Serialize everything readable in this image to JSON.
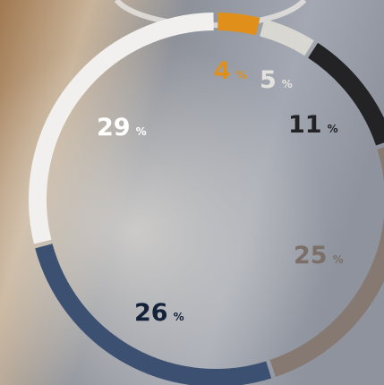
{
  "chart_data": {
    "type": "donut",
    "unit": "%",
    "categories": [
      null,
      null,
      null,
      null,
      null,
      null
    ],
    "values": [
      4,
      5,
      11,
      25,
      26,
      29
    ],
    "colors": [
      "#e0901a",
      "#d9d7d1",
      "#232325",
      "#857971",
      "#3c5072",
      "#f1f0ee"
    ],
    "label_colors": [
      "#e0901a",
      "#e4e2de",
      "#232325",
      "#7b6f68",
      "#14223a",
      "#ffffff"
    ]
  }
}
